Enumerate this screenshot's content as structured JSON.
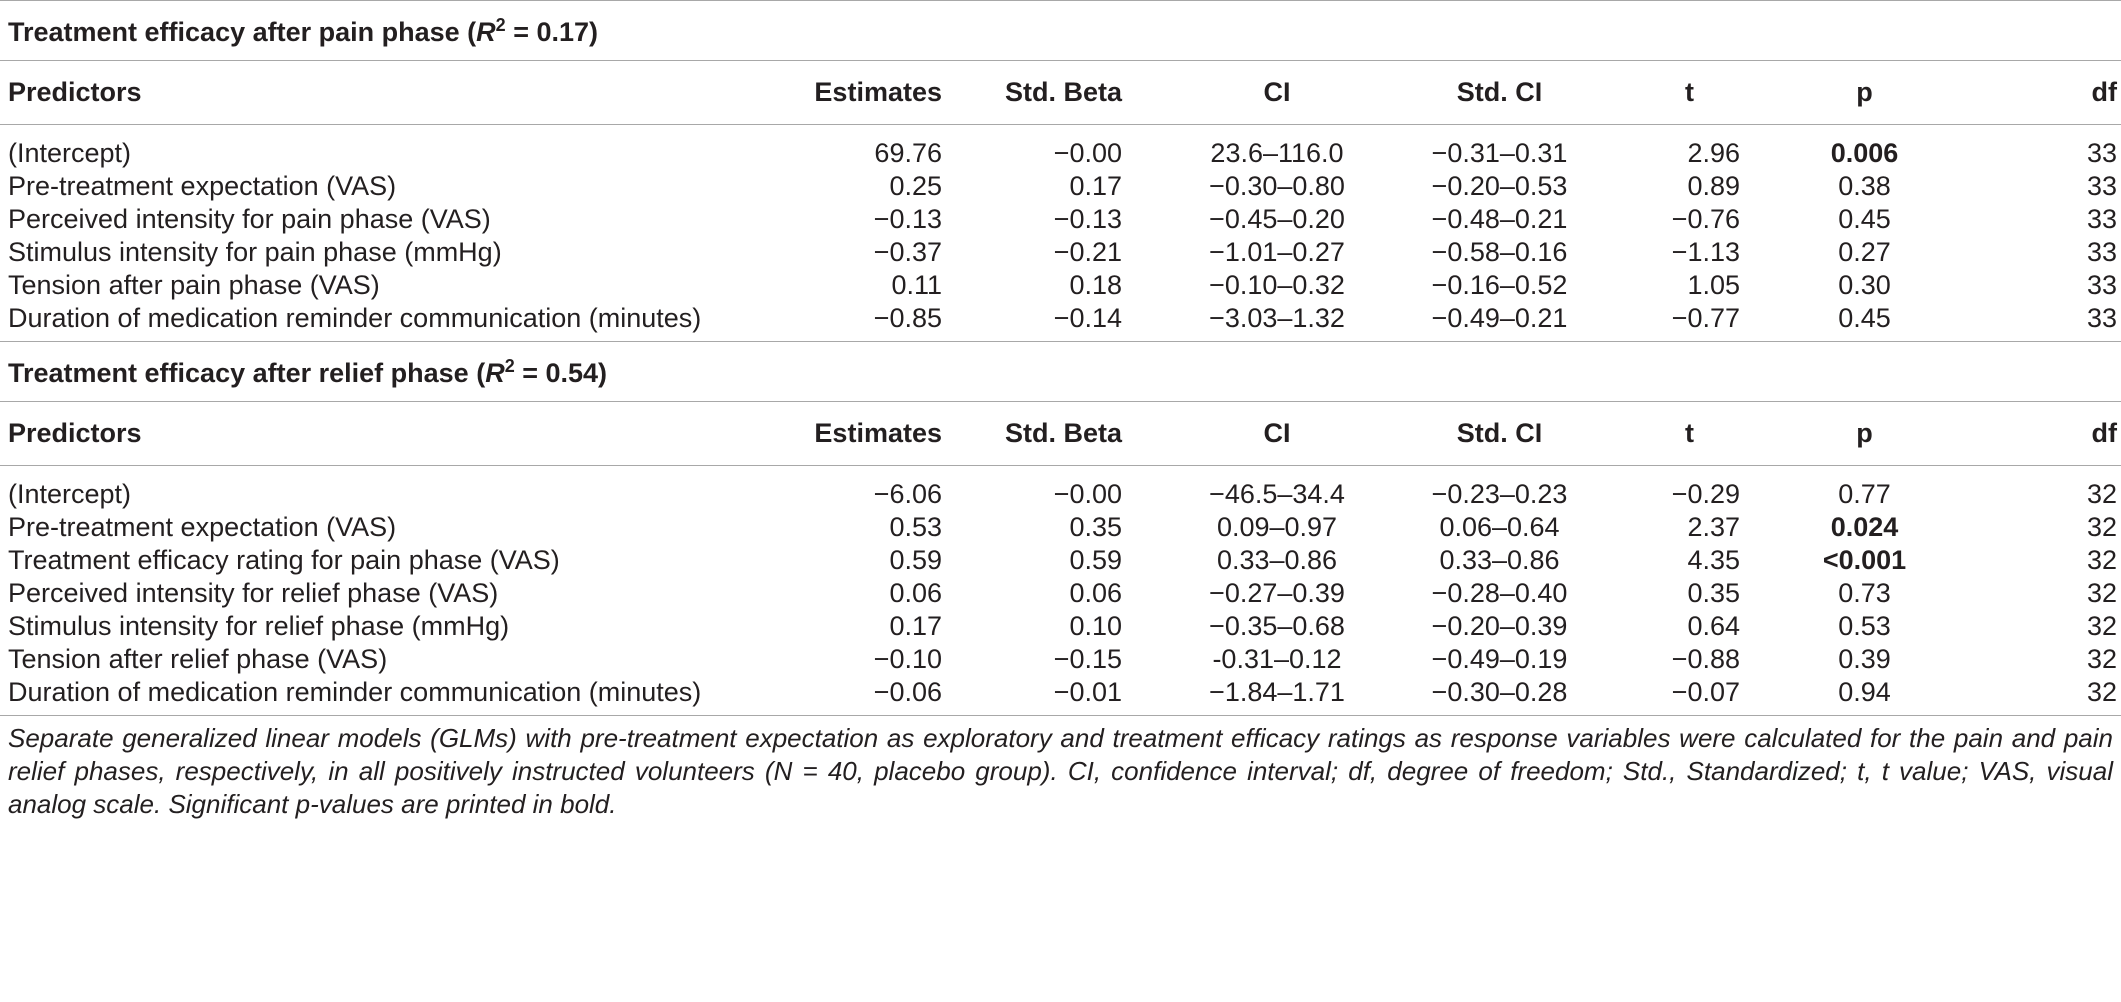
{
  "columns": [
    "Predictors",
    "Estimates",
    "Std. Beta",
    "CI",
    "Std. CI",
    "t",
    "p",
    "df"
  ],
  "sections": [
    {
      "title_prefix": "Treatment efficacy after pain phase (",
      "r2_symbol": "R",
      "r2_sup": "2",
      "title_suffix": " = 0.17)",
      "rows": [
        {
          "predictor": "(Intercept)",
          "estimate": "69.76",
          "std_beta": "−0.00",
          "ci": "23.6–116.0",
          "std_ci": "−0.31–0.31",
          "t": "2.96",
          "p": "0.006",
          "df": "33",
          "significant": true
        },
        {
          "predictor": "Pre-treatment expectation (VAS)",
          "estimate": "0.25",
          "std_beta": "0.17",
          "ci": "−0.30–0.80",
          "std_ci": "−0.20–0.53",
          "t": "0.89",
          "p": "0.38",
          "df": "33",
          "significant": false
        },
        {
          "predictor": "Perceived intensity for pain phase (VAS)",
          "estimate": "−0.13",
          "std_beta": "−0.13",
          "ci": "−0.45–0.20",
          "std_ci": "−0.48–0.21",
          "t": "−0.76",
          "p": "0.45",
          "df": "33",
          "significant": false
        },
        {
          "predictor": "Stimulus intensity for pain phase (mmHg)",
          "estimate": "−0.37",
          "std_beta": "−0.21",
          "ci": "−1.01–0.27",
          "std_ci": "−0.58–0.16",
          "t": "−1.13",
          "p": "0.27",
          "df": "33",
          "significant": false
        },
        {
          "predictor": "Tension after pain phase (VAS)",
          "estimate": "0.11",
          "std_beta": "0.18",
          "ci": "−0.10–0.32",
          "std_ci": "−0.16–0.52",
          "t": "1.05",
          "p": "0.30",
          "df": "33",
          "significant": false
        },
        {
          "predictor": "Duration of medication reminder communication (minutes)",
          "estimate": "−0.85",
          "std_beta": "−0.14",
          "ci": "−3.03–1.32",
          "std_ci": "−0.49–0.21",
          "t": "−0.77",
          "p": "0.45",
          "df": "33",
          "significant": false
        }
      ]
    },
    {
      "title_prefix": "Treatment efficacy after relief phase (",
      "r2_symbol": "R",
      "r2_sup": "2",
      "title_suffix": " = 0.54)",
      "rows": [
        {
          "predictor": "(Intercept)",
          "estimate": "−6.06",
          "std_beta": "−0.00",
          "ci": "−46.5–34.4",
          "std_ci": "−0.23–0.23",
          "t": "−0.29",
          "p": "0.77",
          "df": "32",
          "significant": false
        },
        {
          "predictor": "Pre-treatment expectation (VAS)",
          "estimate": "0.53",
          "std_beta": "0.35",
          "ci": "0.09–0.97",
          "std_ci": "0.06–0.64",
          "t": "2.37",
          "p": "0.024",
          "df": "32",
          "significant": true
        },
        {
          "predictor": "Treatment efficacy rating for pain phase (VAS)",
          "estimate": "0.59",
          "std_beta": "0.59",
          "ci": "0.33–0.86",
          "std_ci": "0.33–0.86",
          "t": "4.35",
          "p": "<0.001",
          "df": "32",
          "significant": true
        },
        {
          "predictor": "Perceived intensity for relief phase (VAS)",
          "estimate": "0.06",
          "std_beta": "0.06",
          "ci": "−0.27–0.39",
          "std_ci": "−0.28–0.40",
          "t": "0.35",
          "p": "0.73",
          "df": "32",
          "significant": false
        },
        {
          "predictor": "Stimulus intensity for relief phase (mmHg)",
          "estimate": "0.17",
          "std_beta": "0.10",
          "ci": "−0.35–0.68",
          "std_ci": "−0.20–0.39",
          "t": "0.64",
          "p": "0.53",
          "df": "32",
          "significant": false
        },
        {
          "predictor": "Tension after relief phase (VAS)",
          "estimate": "−0.10",
          "std_beta": "−0.15",
          "ci": "-0.31–0.12",
          "std_ci": "−0.49–0.19",
          "t": "−0.88",
          "p": "0.39",
          "df": "32",
          "significant": false
        },
        {
          "predictor": "Duration of medication reminder communication (minutes)",
          "estimate": "−0.06",
          "std_beta": "−0.01",
          "ci": "−1.84–1.71",
          "std_ci": "−0.30–0.28",
          "t": "−0.07",
          "p": "0.94",
          "df": "32",
          "significant": false
        }
      ]
    }
  ],
  "footnote": "Separate generalized linear models (GLMs) with pre-treatment expectation as exploratory and treatment efficacy ratings as response variables were calculated for the pain and pain relief phases, respectively, in all positively instructed volunteers (N = 40, placebo group). CI, confidence interval; df, degree of freedom; Std., Standardized; t, t value; VAS, visual analog scale. Significant p-values are printed in bold."
}
